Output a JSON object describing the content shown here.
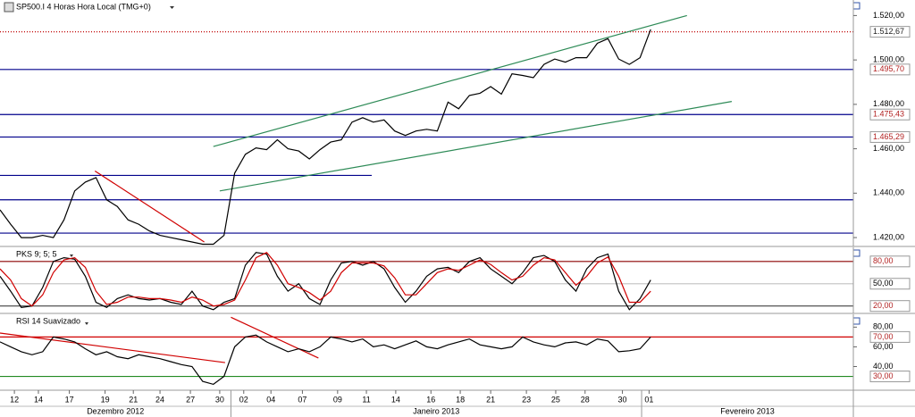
{
  "chart_data": [
    {
      "type": "line",
      "title": "SP500.I 4 Horas Hora Local (TMG+0)",
      "x": [
        0,
        2,
        4,
        6,
        8,
        10,
        12,
        14,
        16,
        18,
        20,
        22,
        24,
        26,
        28,
        30,
        32,
        34,
        36,
        38,
        40,
        42,
        44,
        46,
        48,
        50,
        52,
        54,
        56,
        58,
        60,
        62,
        64,
        66,
        68,
        70,
        72,
        74,
        76,
        78,
        80,
        82,
        84,
        86,
        88,
        90,
        92,
        94,
        96,
        98,
        100,
        102,
        104,
        106,
        108,
        110,
        112,
        114,
        116,
        118,
        120,
        122
      ],
      "series": [
        {
          "color": "#000000",
          "values": [
            1432.5,
            1426,
            1420,
            1420,
            1421,
            1420,
            1428,
            1441,
            1445,
            1447,
            1437,
            1434,
            1428,
            1426,
            1423,
            1421,
            1420,
            1419,
            1418,
            1417,
            1417,
            1421,
            1449,
            1457.5,
            1460.4,
            1459.6,
            1464,
            1460,
            1459,
            1455.4,
            1459.6,
            1463,
            1464,
            1472,
            1474,
            1472,
            1473,
            1468,
            1466,
            1468,
            1468.75,
            1468,
            1481,
            1478,
            1484,
            1485,
            1488,
            1484.6,
            1493.75,
            1493,
            1492,
            1498,
            1500.4,
            1499,
            1501,
            1501,
            1507.5,
            1509.6,
            1500.4,
            1498,
            1501,
            1513.75
          ]
        }
      ],
      "xlim": [
        0,
        160
      ],
      "ylim": [
        1416,
        1527
      ],
      "yticks": [
        {
          "value": 1520,
          "label": "1.520,00"
        },
        {
          "value": 1500,
          "label": "1.500,00"
        },
        {
          "value": 1480,
          "label": "1.480,00"
        },
        {
          "value": 1460,
          "label": "1.460,00"
        },
        {
          "value": 1440,
          "label": "1.440,00"
        },
        {
          "value": 1420,
          "label": "1.420,00"
        }
      ],
      "levels": [
        {
          "value": 1512.67,
          "label": "1.512,67",
          "color": "#c00000",
          "style": "dotted"
        },
        {
          "value": 1495.7,
          "label": "1.495,70",
          "color": "#00008b"
        },
        {
          "value": 1475.43,
          "label": "1.475,43",
          "color": "#00008b"
        },
        {
          "value": 1465.29,
          "label": "1.465,29",
          "color": "#00008b"
        },
        {
          "value": 1448,
          "color": "#00008b",
          "to": 69.7
        },
        {
          "value": 1437,
          "color": "#00008b"
        },
        {
          "value": 1422,
          "color": "#00008b"
        }
      ],
      "trendlines": [
        {
          "points": [
            [
              40,
              1461
            ],
            [
              128.8,
              1520
            ]
          ],
          "color": "#2e8b57"
        },
        {
          "points": [
            [
              41.2,
              1441
            ],
            [
              137.2,
              1481.3
            ]
          ],
          "color": "#2e8b57"
        },
        {
          "points": [
            [
              17.8,
              1450
            ],
            [
              38.3,
              1418
            ]
          ],
          "color": "#d00000"
        }
      ]
    },
    {
      "type": "line",
      "title": "PKS 9; 5; 5",
      "x": [
        0,
        2,
        4,
        6,
        8,
        10,
        12,
        14,
        16,
        18,
        20,
        22,
        24,
        26,
        28,
        30,
        32,
        34,
        36,
        38,
        40,
        42,
        44,
        46,
        48,
        50,
        52,
        54,
        56,
        58,
        60,
        62,
        64,
        66,
        68,
        70,
        72,
        74,
        76,
        78,
        80,
        82,
        84,
        86,
        88,
        90,
        92,
        94,
        96,
        98,
        100,
        102,
        104,
        106,
        108,
        110,
        112,
        114,
        116,
        118,
        120,
        122
      ],
      "series": [
        {
          "color": "#000000",
          "values": [
            60,
            40,
            18,
            20,
            45,
            80,
            85,
            83,
            60,
            25,
            18,
            30,
            35,
            30,
            28,
            30,
            25,
            22,
            40,
            20,
            15,
            25,
            30,
            75,
            92,
            90,
            60,
            40,
            50,
            30,
            22,
            55,
            78,
            80,
            75,
            80,
            70,
            45,
            25,
            40,
            60,
            70,
            72,
            65,
            80,
            85,
            70,
            60,
            50,
            65,
            85,
            88,
            80,
            55,
            40,
            70,
            85,
            90,
            40,
            15,
            30,
            55
          ]
        },
        {
          "color": "#d00000",
          "values": [
            70,
            55,
            30,
            20,
            35,
            65,
            82,
            85,
            72,
            40,
            22,
            25,
            32,
            32,
            30,
            30,
            28,
            25,
            32,
            28,
            20,
            22,
            28,
            55,
            85,
            92,
            75,
            50,
            45,
            38,
            28,
            40,
            65,
            78,
            78,
            78,
            74,
            58,
            35,
            35,
            50,
            65,
            70,
            68,
            75,
            82,
            76,
            65,
            55,
            60,
            75,
            85,
            82,
            65,
            48,
            60,
            78,
            86,
            60,
            25,
            25,
            40
          ]
        }
      ],
      "xlim": [
        0,
        160
      ],
      "ylim": [
        10,
        99
      ],
      "levels": [
        {
          "value": 80,
          "label": "80,00",
          "color": "#8b0000"
        },
        {
          "value": 50,
          "label": "50,00",
          "color": "#c8c8c8"
        },
        {
          "value": 20,
          "label": "20,00",
          "color": "#404040"
        }
      ]
    },
    {
      "type": "line",
      "title": "RSI 14 Suavizado",
      "x": [
        0,
        2,
        4,
        6,
        8,
        10,
        12,
        14,
        16,
        18,
        20,
        22,
        24,
        26,
        28,
        30,
        32,
        34,
        36,
        38,
        40,
        42,
        44,
        46,
        48,
        50,
        52,
        54,
        56,
        58,
        60,
        62,
        64,
        66,
        68,
        70,
        72,
        74,
        76,
        78,
        80,
        82,
        84,
        86,
        88,
        90,
        92,
        94,
        96,
        98,
        100,
        102,
        104,
        106,
        108,
        110,
        112,
        114,
        116,
        118,
        120,
        122
      ],
      "series": [
        {
          "color": "#000000",
          "values": [
            65,
            60,
            55,
            52,
            55,
            70,
            68,
            65,
            58,
            52,
            55,
            50,
            48,
            52,
            50,
            48,
            45,
            42,
            40,
            25,
            22,
            30,
            60,
            70,
            72,
            65,
            60,
            55,
            58,
            55,
            60,
            70,
            68,
            65,
            68,
            60,
            62,
            58,
            62,
            66,
            60,
            58,
            62,
            65,
            68,
            62,
            60,
            58,
            60,
            70,
            65,
            62,
            60,
            64,
            65,
            62,
            68,
            66,
            55,
            56,
            58,
            70
          ]
        }
      ],
      "xlim": [
        0,
        160
      ],
      "ylim": [
        16,
        93
      ],
      "yticks": [
        {
          "value": 80,
          "label": "80,00"
        },
        {
          "value": 60,
          "label": "60,00"
        },
        {
          "value": 40,
          "label": "40,00"
        }
      ],
      "levels": [
        {
          "value": 70,
          "label": "70,00",
          "color": "#d00000"
        },
        {
          "value": 30,
          "label": "30,00",
          "color": "#228b22"
        }
      ],
      "trendlines": [
        {
          "points": [
            [
              0,
              74
            ],
            [
              42.2,
              44
            ]
          ],
          "color": "#d00000"
        },
        {
          "points": [
            [
              43.3,
              90
            ],
            [
              59.7,
              48.7
            ]
          ],
          "color": "#d00000"
        }
      ],
      "xticks": [
        {
          "value": 2.7,
          "label": "12"
        },
        {
          "value": 7.2,
          "label": "14"
        },
        {
          "value": 13,
          "label": "17"
        },
        {
          "value": 19.7,
          "label": "19"
        },
        {
          "value": 25,
          "label": "21"
        },
        {
          "value": 30,
          "label": "24"
        },
        {
          "value": 35.7,
          "label": "27"
        },
        {
          "value": 41.2,
          "label": "30"
        },
        {
          "value": 45.7,
          "label": "02"
        },
        {
          "value": 50.8,
          "label": "04"
        },
        {
          "value": 56.7,
          "label": "07"
        },
        {
          "value": 63.3,
          "label": "09"
        },
        {
          "value": 68.7,
          "label": "11"
        },
        {
          "value": 74.2,
          "label": "14"
        },
        {
          "value": 80.8,
          "label": "16"
        },
        {
          "value": 86.3,
          "label": "18"
        },
        {
          "value": 92,
          "label": "21"
        },
        {
          "value": 98.7,
          "label": "23"
        },
        {
          "value": 104.2,
          "label": "25"
        },
        {
          "value": 109.7,
          "label": "28"
        },
        {
          "value": 116.7,
          "label": "30"
        },
        {
          "value": 121.7,
          "label": "01"
        }
      ],
      "x_groups": [
        {
          "label": "Dezembro 2012",
          "range": [
            0,
            43.3
          ]
        },
        {
          "label": "Janeiro 2013",
          "range": [
            43.3,
            120.3
          ]
        },
        {
          "label": "Fevereiro 2013",
          "range": [
            120.3,
            160
          ]
        }
      ]
    }
  ]
}
